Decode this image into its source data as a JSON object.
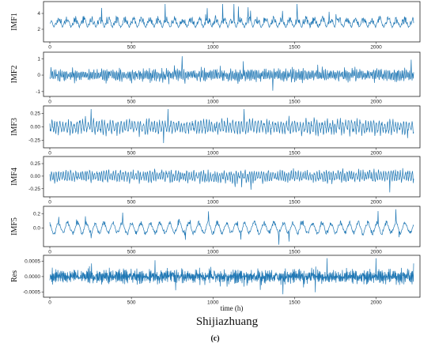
{
  "figure": {
    "title": "Shijiazhuang",
    "caption": "(c)",
    "xlabel": "time (h)"
  },
  "colors": {
    "line": "#1f77b4",
    "axis": "#222222"
  },
  "chart_data": [
    {
      "type": "line",
      "ylabel": "IMF1",
      "x_range": [
        0,
        2230
      ],
      "x_ticks": [
        0,
        500,
        1000,
        1500,
        2000
      ],
      "ylim": [
        0.6,
        5.3
      ],
      "y_ticks": [
        {
          "value": 2,
          "label": "2"
        },
        {
          "value": 4,
          "label": "4"
        }
      ],
      "series": [
        {
          "signal": {
            "kind": "wave",
            "base": 2.2,
            "amp": 1.0,
            "ampMax": 3.0,
            "period": 42,
            "seed": 11
          }
        }
      ]
    },
    {
      "type": "line",
      "ylabel": "IMF2",
      "x_range": [
        0,
        2230
      ],
      "x_ticks": [
        0,
        500,
        1000,
        1500,
        2000
      ],
      "ylim": [
        -1.2,
        1.3
      ],
      "y_ticks": [
        {
          "value": 1,
          "label": "1"
        },
        {
          "value": 0,
          "label": "0"
        },
        {
          "value": -1,
          "label": "-1"
        }
      ],
      "series": [
        {
          "signal": {
            "kind": "noise",
            "base": 0,
            "amp": 0.28,
            "ampMax": 1.15,
            "period": 4,
            "seed": 22
          }
        }
      ]
    },
    {
      "type": "line",
      "ylabel": "IMF3",
      "x_range": [
        0,
        2230
      ],
      "x_ticks": [
        0,
        500,
        1000,
        1500,
        2000
      ],
      "ylim": [
        -0.36,
        0.36
      ],
      "y_ticks": [
        {
          "value": 0.25,
          "label": "0.25"
        },
        {
          "value": 0.0,
          "label": "0.00"
        },
        {
          "value": -0.25,
          "label": "-0.25"
        }
      ],
      "series": [
        {
          "signal": {
            "kind": "noise",
            "base": 0,
            "amp": 0.1,
            "ampMax": 0.33,
            "period": 7,
            "seed": 33
          }
        }
      ]
    },
    {
      "type": "line",
      "ylabel": "IMF4",
      "x_range": [
        0,
        2230
      ],
      "x_ticks": [
        0,
        500,
        1000,
        1500,
        2000
      ],
      "ylim": [
        -0.38,
        0.36
      ],
      "y_ticks": [
        {
          "value": 0.25,
          "label": "0.25"
        },
        {
          "value": 0.0,
          "label": "0.00"
        },
        {
          "value": -0.25,
          "label": "-0.25"
        }
      ],
      "series": [
        {
          "signal": {
            "kind": "noise",
            "base": 0,
            "amp": 0.09,
            "ampMax": 0.34,
            "period": 6,
            "seed": 44
          }
        }
      ]
    },
    {
      "type": "line",
      "ylabel": "IMF5",
      "x_range": [
        0,
        2230
      ],
      "x_ticks": [
        0,
        500,
        1000,
        1500,
        2000
      ],
      "ylim": [
        -0.24,
        0.28
      ],
      "y_ticks": [
        {
          "value": 0.2,
          "label": "0.2"
        },
        {
          "value": 0.0,
          "label": "0.0"
        }
      ],
      "series": [
        {
          "signal": {
            "kind": "wave",
            "base": 0,
            "amp": 0.07,
            "ampMax": 0.26,
            "period": 24,
            "seed": 55
          }
        }
      ]
    },
    {
      "type": "line",
      "ylabel": "Res",
      "x_range": [
        0,
        2230
      ],
      "x_ticks": [
        0,
        500,
        1000,
        1500,
        2000
      ],
      "ylim": [
        -0.00062,
        0.00064
      ],
      "y_ticks": [
        {
          "value": 0.0005,
          "label": "0.0005"
        },
        {
          "value": 0.0,
          "label": "0.0000"
        },
        {
          "value": -0.0005,
          "label": "-0.0005"
        }
      ],
      "series": [
        {
          "signal": {
            "kind": "noise",
            "base": 0,
            "amp": 0.00017,
            "ampMax": 0.0006,
            "period": 2.5,
            "seed": 66
          }
        }
      ]
    }
  ]
}
